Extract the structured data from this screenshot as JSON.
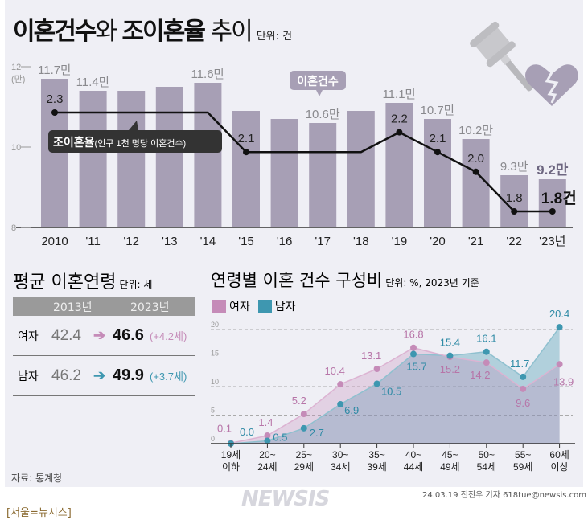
{
  "header": {
    "title_a": "이혼건수",
    "title_b": "와 ",
    "title_c": "조이혼율",
    "title_d": " 추이",
    "unit": "단위: 건"
  },
  "colors": {
    "bar": "#a79fb5",
    "line": "#111111",
    "female": "#c58bb8",
    "male": "#3e97b0",
    "panel": "#efeff5"
  },
  "icons": [
    "gavel-icon",
    "broken-heart-icon"
  ],
  "chart_data": [
    {
      "type": "bar+line",
      "title": "이혼건수와 조이혼율 추이",
      "unit": "단위: 건",
      "categories": [
        "2010",
        "'11",
        "'12",
        "'13",
        "'14",
        "'15",
        "'16",
        "'17",
        "'18",
        "'19",
        "'20",
        "'21",
        "'22",
        "'23년"
      ],
      "y_ticks": [
        "12",
        "10",
        "8"
      ],
      "y_unit": "(만)",
      "ylim": [
        8,
        12
      ],
      "series": [
        {
          "name": "이혼건수",
          "type": "bar",
          "values": [
            11.7,
            11.4,
            11.4,
            11.5,
            11.6,
            10.9,
            10.7,
            10.6,
            10.9,
            11.1,
            10.7,
            10.2,
            9.3,
            9.2
          ],
          "labels": [
            "11.7만",
            "11.4만",
            "",
            "",
            "11.6만",
            "",
            "",
            "10.6만",
            "",
            "11.1만",
            "10.7만",
            "10.2만",
            "9.3만",
            "9.2만"
          ]
        },
        {
          "name": "조이혼율",
          "type": "line",
          "values": [
            2.3,
            2.3,
            2.3,
            2.3,
            2.3,
            2.1,
            2.1,
            2.1,
            2.1,
            2.2,
            2.1,
            2.0,
            1.8,
            1.8
          ],
          "labels": [
            "2.3",
            "",
            "",
            "",
            "",
            "2.1",
            "",
            "",
            "",
            "2.2",
            "2.1",
            "2.0",
            "1.8",
            "1.8건"
          ]
        }
      ],
      "annotations": {
        "bar_callout": "이혼건수",
        "line_callout_bold": "조이혼율",
        "line_callout_rest": "(인구 1천 명당 이혼건수)"
      }
    },
    {
      "type": "area",
      "title": "연령별 이혼 건수 구성비",
      "unit": "단위: %, 2023년 기준",
      "categories": [
        [
          "19세",
          "이하"
        ],
        [
          "20~",
          "24세"
        ],
        [
          "25~",
          "29세"
        ],
        [
          "30~",
          "34세"
        ],
        [
          "35~",
          "39세"
        ],
        [
          "40~",
          "44세"
        ],
        [
          "45~",
          "49세"
        ],
        [
          "50~",
          "54세"
        ],
        [
          "55~",
          "59세"
        ],
        [
          "60세",
          "이상"
        ]
      ],
      "y_ticks": [
        "0",
        "5",
        "10",
        "15",
        "20"
      ],
      "ylim": [
        0,
        20
      ],
      "grid": true,
      "legend": "top-left",
      "series": [
        {
          "name": "여자",
          "values": [
            0.1,
            1.4,
            5.2,
            10.4,
            13.1,
            16.8,
            15.2,
            14.2,
            9.6,
            13.9
          ]
        },
        {
          "name": "남자",
          "values": [
            0.0,
            0.5,
            2.7,
            6.9,
            10.5,
            15.7,
            15.4,
            16.1,
            11.7,
            20.4
          ]
        }
      ]
    }
  ],
  "avg_age": {
    "title": "평균 이혼연령",
    "unit": "단위: 세",
    "cols": [
      "2013년",
      "2023년"
    ],
    "rows": [
      {
        "label": "여자",
        "old": "42.4",
        "new": "46.6",
        "diff": "(+4.2세)"
      },
      {
        "label": "남자",
        "old": "46.2",
        "new": "49.9",
        "diff": "(+3.7세)"
      }
    ]
  },
  "footer": {
    "source": "자료: 통계청",
    "credit": "24.03.19 전진우 기자 618tue@newsis.com",
    "dateline": "[서울=뉴시스]",
    "watermark": "NEWSIS"
  }
}
